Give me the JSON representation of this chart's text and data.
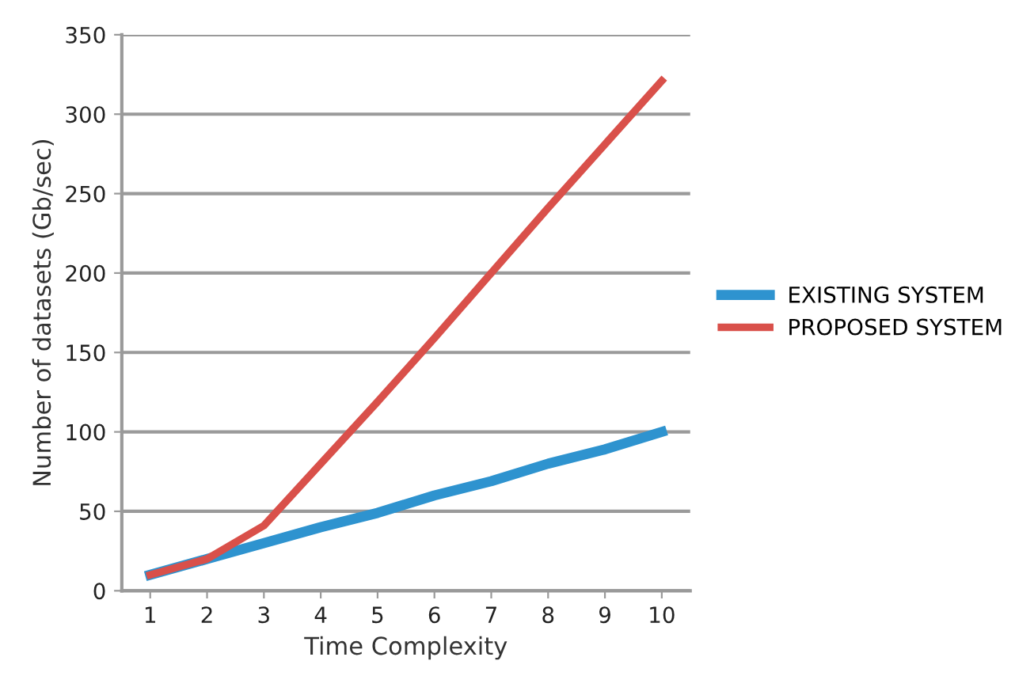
{
  "chart_data": {
    "type": "line",
    "xlabel": "Time Complexity",
    "ylabel": "Number of datasets (Gb/sec)",
    "categories": [
      "1",
      "2",
      "3",
      "4",
      "5",
      "6",
      "7",
      "8",
      "9",
      "10"
    ],
    "series": [
      {
        "name": "EXISTING SYSTEM",
        "color": "#2e93cf",
        "values": [
          10,
          20,
          30,
          40,
          49,
          60,
          69,
          80,
          89,
          100
        ]
      },
      {
        "name": "PROPOSED SYSTEM",
        "color": "#d9504a",
        "values": [
          10,
          20,
          41,
          80,
          119,
          159,
          200,
          241,
          281,
          321
        ]
      }
    ],
    "ylim": [
      0,
      350
    ],
    "yticks": [
      0,
      50,
      100,
      150,
      200,
      250,
      300,
      350
    ],
    "grid": "y",
    "legend": "right",
    "marker": "none",
    "line_style": "solid"
  }
}
